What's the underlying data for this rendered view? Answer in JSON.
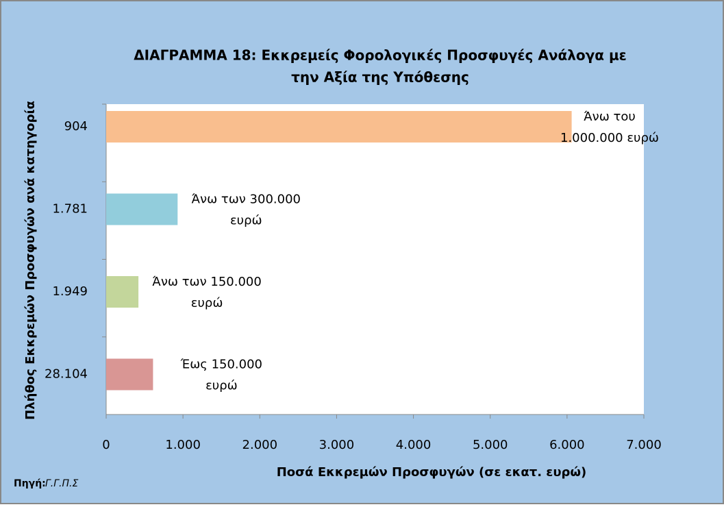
{
  "chart_data": {
    "type": "bar",
    "orientation": "horizontal",
    "title": [
      "ΔΙΑΓΡΑΜΜΑ 18: Εκκρεμείς Φορολογικές Προσφυγές  Ανάλογα με",
      "την Αξία της Υπόθεσης"
    ],
    "x_label": "Ποσά Εκκρεμών Προσφυγών (σε εκατ. ευρώ)",
    "y_label": "Πλήθος Εκκρεμών  Προσφυγών  ανά κατηγορία",
    "categories": [
      "904",
      "1.781",
      "1.949",
      "28.104"
    ],
    "values": [
      6060,
      930,
      420,
      610
    ],
    "colors": [
      "#f9be8e",
      "#92cddc",
      "#c3d69b",
      "#d99694"
    ],
    "data_labels": [
      [
        "Άνω του",
        "1.000.000 ευρώ"
      ],
      [
        "Άνω των 300.000",
        "ευρώ"
      ],
      [
        "Άνω των 150.000",
        "ευρώ"
      ],
      [
        "Έως 150.000",
        "ευρώ"
      ]
    ],
    "xlim": [
      0,
      7000
    ],
    "xticks": [
      0,
      {
        "value": 1000,
        "label": "1.000"
      },
      {
        "value": 2000,
        "label": "2.000"
      },
      {
        "value": 3000,
        "label": "3.000"
      },
      {
        "value": 4000,
        "label": "4.000"
      },
      {
        "value": 5000,
        "label": "5.000"
      },
      {
        "value": 6000,
        "label": "6.000"
      },
      {
        "value": 7000,
        "label": "7.000"
      }
    ],
    "source_label": "Πηγή:",
    "source": "Γ.Γ.Π.Σ"
  }
}
